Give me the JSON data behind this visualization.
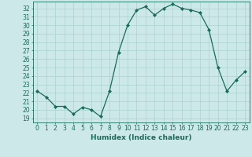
{
  "x": [
    0,
    1,
    2,
    3,
    4,
    5,
    6,
    7,
    8,
    9,
    10,
    11,
    12,
    13,
    14,
    15,
    16,
    17,
    18,
    19,
    20,
    21,
    22,
    23
  ],
  "y": [
    22.2,
    21.5,
    20.4,
    20.4,
    19.5,
    20.3,
    20.0,
    19.2,
    22.2,
    26.8,
    30.0,
    31.8,
    32.2,
    31.2,
    32.0,
    32.5,
    32.0,
    31.8,
    31.5,
    29.5,
    25.0,
    22.2,
    23.5,
    24.5
  ],
  "line_color": "#1a6b5a",
  "marker": "D",
  "marker_size": 2,
  "bg_color": "#cce8e8",
  "grid_color": "#b0d4d4",
  "xlabel": "Humidex (Indice chaleur)",
  "ylabel_ticks": [
    19,
    20,
    21,
    22,
    23,
    24,
    25,
    26,
    27,
    28,
    29,
    30,
    31,
    32
  ],
  "ylim": [
    18.5,
    32.8
  ],
  "xlim": [
    -0.5,
    23.5
  ],
  "label_fontsize": 6.5,
  "tick_fontsize": 5.5
}
